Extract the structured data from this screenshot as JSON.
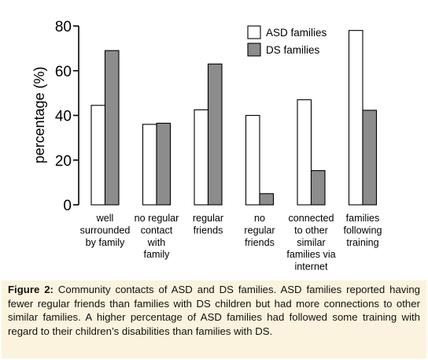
{
  "chart_data": {
    "type": "bar",
    "ylabel": "percentage (%)",
    "ylim": [
      0,
      80
    ],
    "yticks": [
      "0",
      "20",
      "40",
      "60",
      "80"
    ],
    "categories": [
      [
        "well",
        "surrounded",
        "by family"
      ],
      [
        "no regular",
        "contact",
        "with",
        "family"
      ],
      [
        "regular",
        "friends"
      ],
      [
        "no",
        "regular",
        "friends"
      ],
      [
        "connected",
        "to other",
        "similar",
        "families via",
        "internet"
      ],
      [
        "families",
        "following",
        "training"
      ]
    ],
    "series": [
      {
        "name": "ASD families",
        "color": "#ffffff",
        "values": [
          44.5,
          36,
          42.5,
          40,
          47,
          78
        ]
      },
      {
        "name": "DS families",
        "color": "#8c8c8c",
        "values": [
          69,
          36.5,
          63,
          5,
          15.3,
          42.3
        ]
      }
    ],
    "legend_position": "top-right",
    "grid": false
  },
  "caption": {
    "label": "Figure 2:",
    "text": " Community contacts of ASD and DS families.  ASD families reported having fewer regular friends than families with DS children but had more connections to other similar families.  A higher percentage of ASD families had followed some training with regard to their children’s disabilities than families with DS."
  }
}
